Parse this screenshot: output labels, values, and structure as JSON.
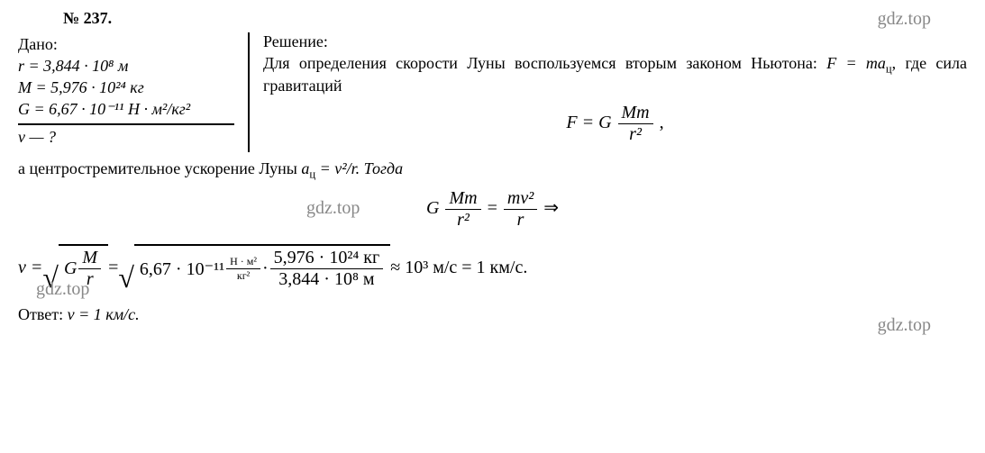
{
  "problem": {
    "number": "№ 237."
  },
  "watermarks": {
    "top": "gdz.top",
    "mid": "gdz.top",
    "left": "gdz.top",
    "right": "gdz.top"
  },
  "given": {
    "label": "Дано:",
    "r": "r = 3,844 · 10⁸ м",
    "M": "M = 5,976 · 10²⁴ кг",
    "G": "G = 6,67 · 10⁻¹¹ Н · м²/кг²",
    "find": "v — ?"
  },
  "solution": {
    "label": "Решение:",
    "text1": "Для определения скорости Луны воспользуемся вторым законом Ньютона: ",
    "newton": "F = ma",
    "newton_sub": "ц",
    "text2": ", где сила гравитаций",
    "grav_left": "F = G",
    "grav_num": "Mm",
    "grav_den": "r²",
    "comma": ",",
    "text3": "а центростремительное ускорение Луны ",
    "accel": "a",
    "accel_sub": "ц",
    "accel_eq": " = v²/r. Тогда",
    "eq_left_G": "G",
    "eq_left_num": "Mm",
    "eq_left_den": "r²",
    "eq_equals": " = ",
    "eq_right_num": "mv²",
    "eq_right_den": "r",
    "eq_arrow": " ⇒",
    "final_v": "v = ",
    "final_G": "G",
    "final_frac_num": "M",
    "final_frac_den": "r",
    "final_eq2": " = ",
    "final_Gval": "6,67 · 10⁻¹¹ ",
    "final_unit_num": "Н · м²",
    "final_unit_den": "кг²",
    "final_dot": " · ",
    "final_bignum": "5,976 · 10²⁴ кг",
    "final_bigden": "3,844 · 10⁸ м",
    "final_approx": " ≈ 10³ м/с = 1 км/с."
  },
  "answer": {
    "label": "Ответ: ",
    "value": "v = 1 км/с."
  },
  "styling": {
    "font_family": "Times New Roman",
    "font_size_body": 18,
    "font_size_formula": 20,
    "background_color": "#ffffff",
    "text_color": "#000000",
    "watermark_color": "#888888",
    "border_color": "#000000"
  }
}
